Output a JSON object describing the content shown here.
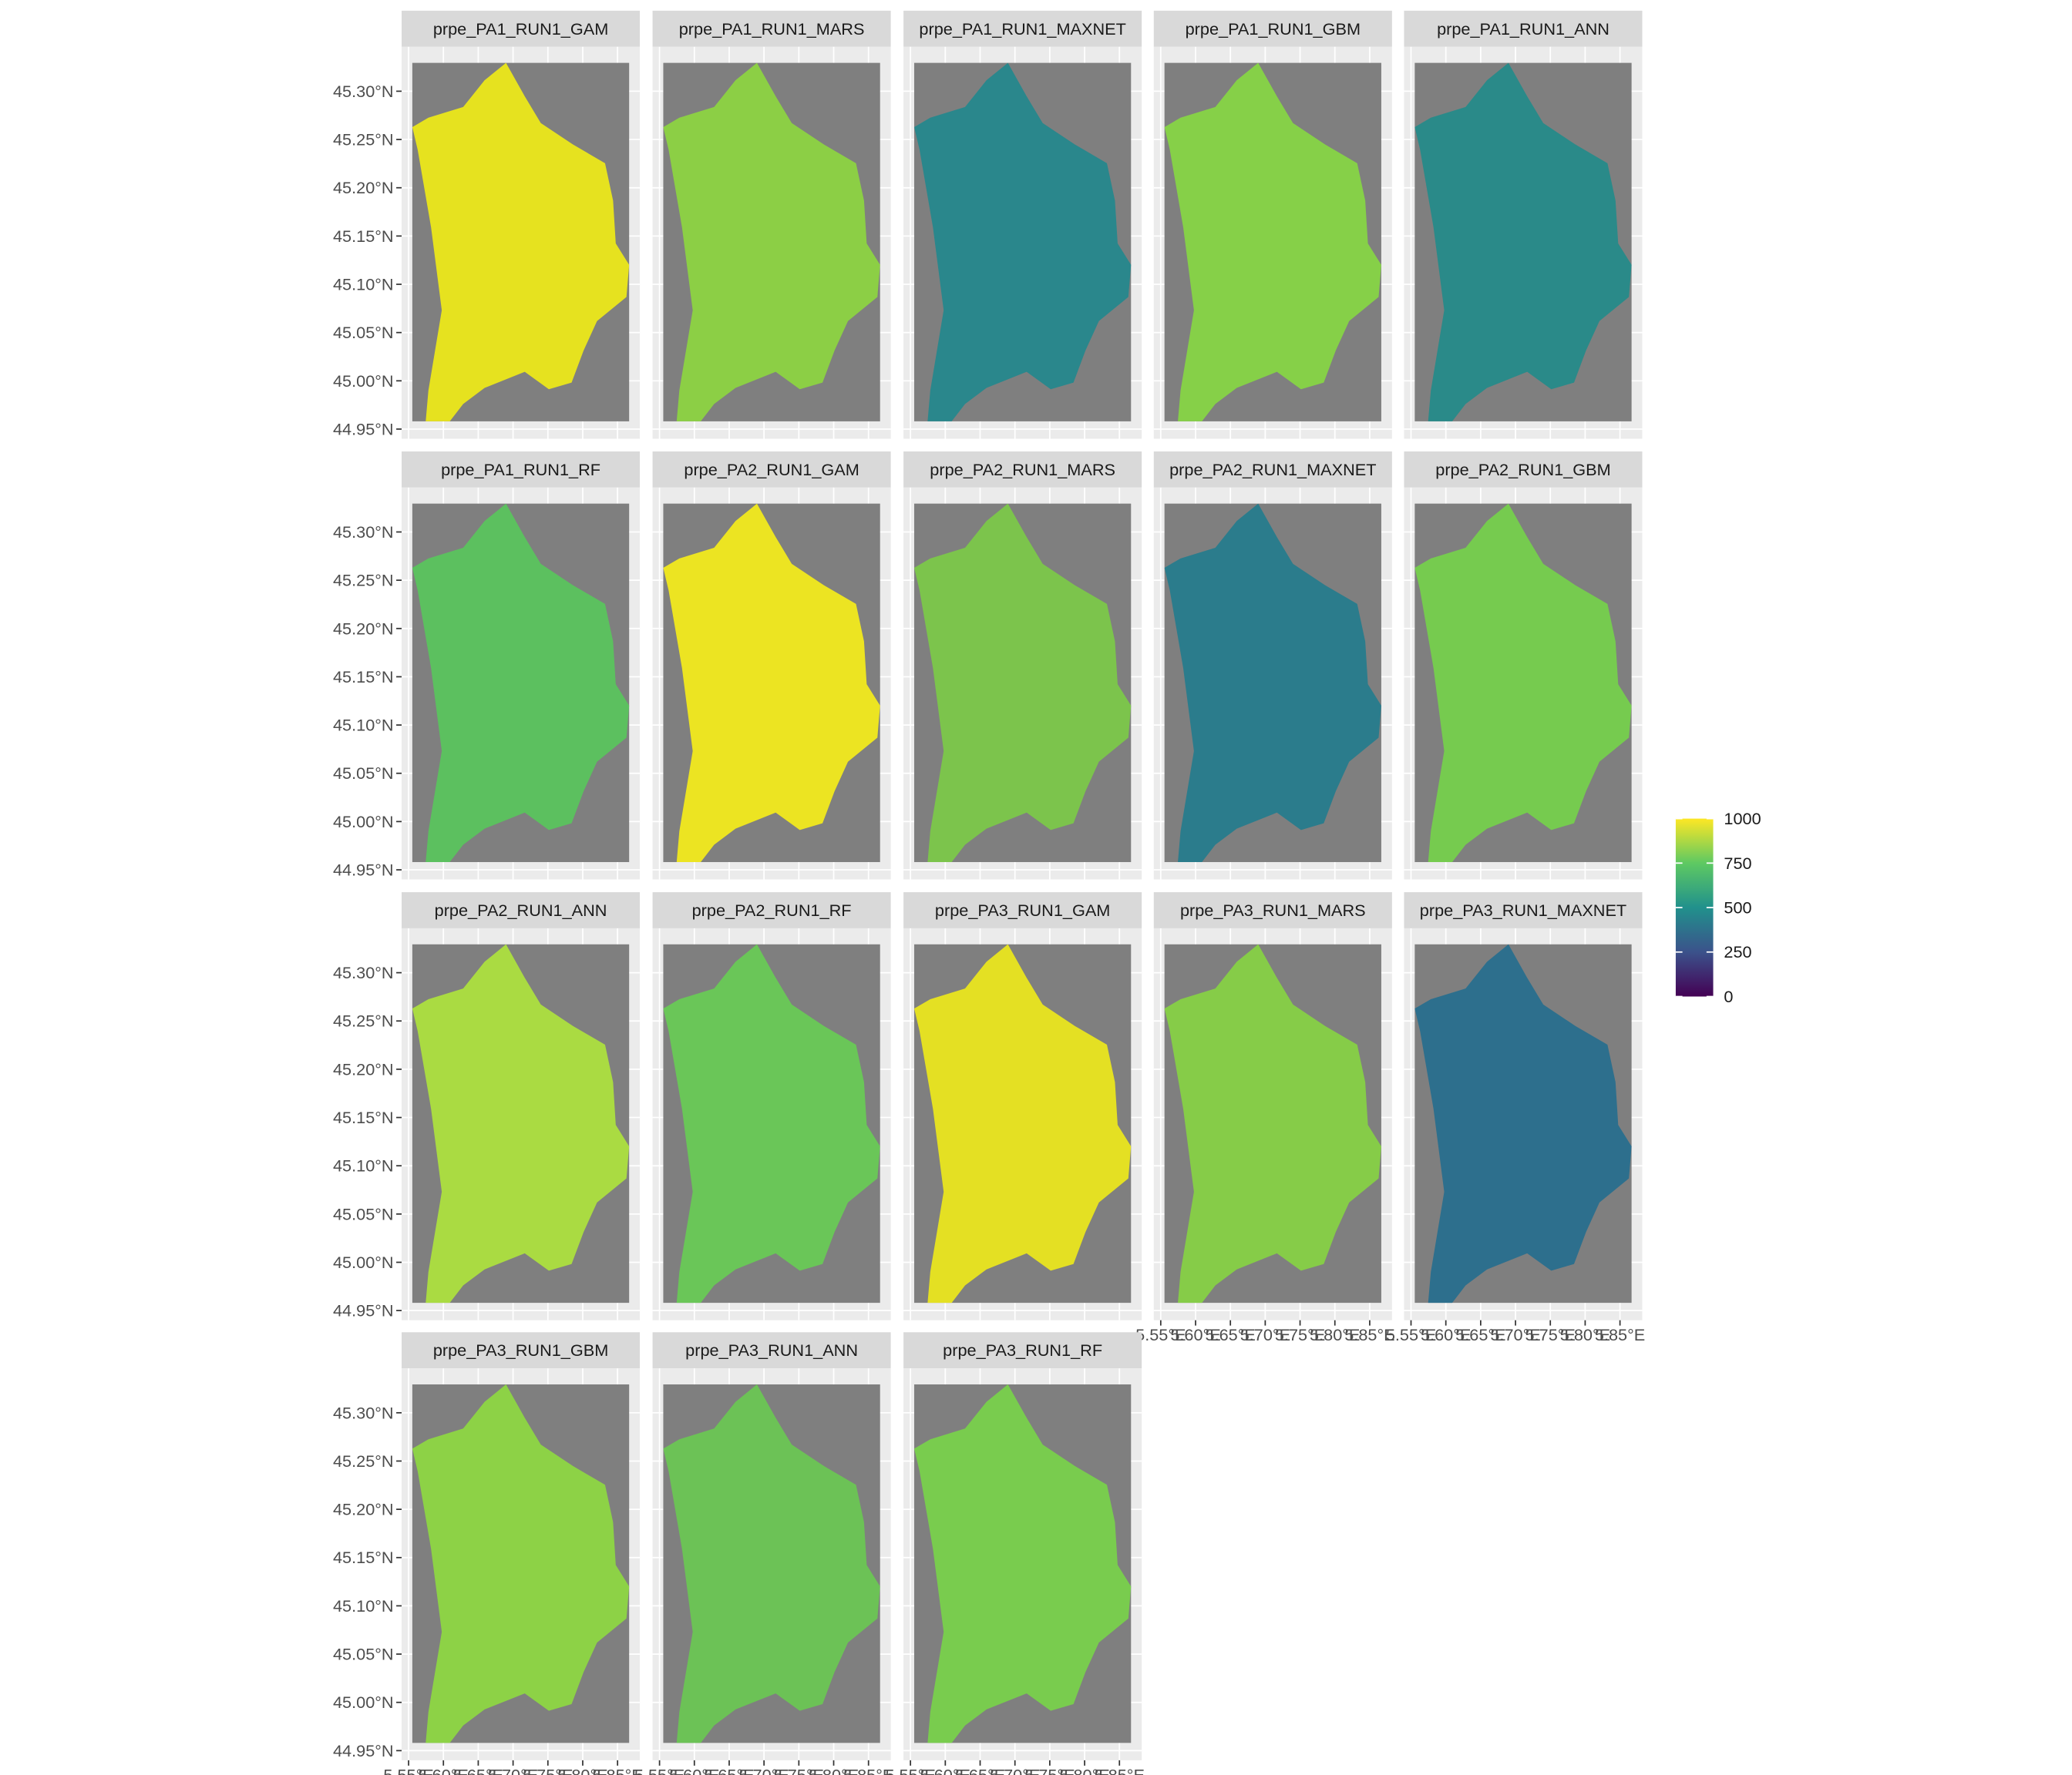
{
  "chart_data": {
    "type": "raster",
    "panels": [
      {
        "title": "prpe_PA1_RUN1_GAM",
        "fill": "#e6e21f"
      },
      {
        "title": "prpe_PA1_RUN1_MARS",
        "fill": "#8ccf45"
      },
      {
        "title": "prpe_PA1_RUN1_MAXNET",
        "fill": "#2a878c"
      },
      {
        "title": "prpe_PA1_RUN1_GBM",
        "fill": "#86d048"
      },
      {
        "title": "prpe_PA1_RUN1_ANN",
        "fill": "#2a8a89"
      },
      {
        "title": "prpe_PA1_RUN1_RF",
        "fill": "#5cc05f"
      },
      {
        "title": "prpe_PA2_RUN1_GAM",
        "fill": "#ece422"
      },
      {
        "title": "prpe_PA2_RUN1_MARS",
        "fill": "#7cc44c"
      },
      {
        "title": "prpe_PA2_RUN1_MAXNET",
        "fill": "#2b7c8c"
      },
      {
        "title": "prpe_PA2_RUN1_GBM",
        "fill": "#76cb4f"
      },
      {
        "title": "prpe_PA2_RUN1_ANN",
        "fill": "#aadb42"
      },
      {
        "title": "prpe_PA2_RUN1_RF",
        "fill": "#6ac658"
      },
      {
        "title": "prpe_PA3_RUN1_GAM",
        "fill": "#e4e023"
      },
      {
        "title": "prpe_PA3_RUN1_MARS",
        "fill": "#86cc48"
      },
      {
        "title": "prpe_PA3_RUN1_MAXNET",
        "fill": "#2d6f8d"
      },
      {
        "title": "prpe_PA3_RUN1_GBM",
        "fill": "#8dd246"
      },
      {
        "title": "prpe_PA3_RUN1_ANN",
        "fill": "#6cc256"
      },
      {
        "title": "prpe_PA3_RUN1_RF",
        "fill": "#79cc4e"
      }
    ],
    "xlim": [
      5.54,
      5.882
    ],
    "xticks": [
      {
        "value": 5.55,
        "label": "5.55°E"
      },
      {
        "value": 5.6,
        "label": "5.60°E"
      },
      {
        "value": 5.65,
        "label": "5.65°E"
      },
      {
        "value": 5.7,
        "label": "5.70°E"
      },
      {
        "value": 5.75,
        "label": "5.75°E"
      },
      {
        "value": 5.8,
        "label": "5.80°E"
      },
      {
        "value": 5.85,
        "label": "5.85°E"
      }
    ],
    "ylim": [
      44.94,
      45.346
    ],
    "yticks": [
      {
        "value": 44.95,
        "label": "44.95°N"
      },
      {
        "value": 45.0,
        "label": "45.00°N"
      },
      {
        "value": 45.05,
        "label": "45.05°N"
      },
      {
        "value": 45.1,
        "label": "45.10°N"
      },
      {
        "value": 45.15,
        "label": "45.15°N"
      },
      {
        "value": 45.2,
        "label": "45.20°N"
      },
      {
        "value": 45.25,
        "label": "45.25°N"
      },
      {
        "value": 45.3,
        "label": "45.30°N"
      }
    ],
    "grid": true,
    "legend": {
      "lim": [
        0,
        1000
      ],
      "ticks": [
        0,
        250,
        500,
        750,
        1000
      ],
      "colors": [
        "#440154",
        "#3b528b",
        "#21918c",
        "#5ec962",
        "#fde725"
      ]
    }
  }
}
